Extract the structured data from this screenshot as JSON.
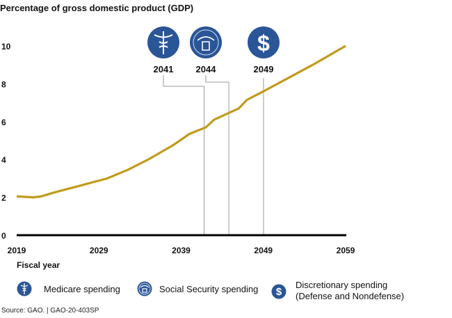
{
  "chart_data": {
    "type": "line",
    "title": "Percentage of gross domestic product (GDP)",
    "xlabel": "Fiscal year",
    "ylabel": "",
    "xlim": [
      2019,
      2059
    ],
    "ylim": [
      0,
      10
    ],
    "x_ticks": [
      "2019",
      "2029",
      "2039",
      "2049",
      "2059"
    ],
    "y_ticks": [
      "0",
      "2",
      "4",
      "6",
      "8",
      "10"
    ],
    "grid": false,
    "line_color": "#c19a1b",
    "series": [
      {
        "x": [
          2019,
          2021,
          2022,
          2023.5,
          2027,
          2030,
          2032.5,
          2035,
          2038,
          2040,
          2042,
          2043,
          2046,
          2047,
          2049,
          2055,
          2059
        ],
        "y": [
          2.05,
          2.0,
          2.05,
          2.25,
          2.65,
          3.0,
          3.45,
          4.0,
          4.75,
          5.35,
          5.7,
          6.1,
          6.7,
          7.15,
          7.6,
          9.0,
          10.0
        ]
      }
    ],
    "annotations": [
      {
        "year": 2041,
        "label": "2041",
        "icon": "medicare-caduceus-icon",
        "marker_x": 2041.8
      },
      {
        "year": 2044,
        "label": "2044",
        "icon": "social-security-seal-icon",
        "marker_x": 2044.8
      },
      {
        "year": 2049,
        "label": "2049",
        "icon": "dollar-sign-icon",
        "marker_x": 2049
      }
    ],
    "icon_color": "#2a5597"
  },
  "legend": [
    {
      "icon": "medicare-caduceus-icon",
      "label": "Medicare spending"
    },
    {
      "icon": "social-security-seal-icon",
      "label": "Social Security spending"
    },
    {
      "icon": "dollar-sign-icon",
      "label": "Discretionary spending",
      "label2": "(Defense and Nondefense)"
    }
  ],
  "source": "Source: GAO.  |  GAO-20-403SP"
}
